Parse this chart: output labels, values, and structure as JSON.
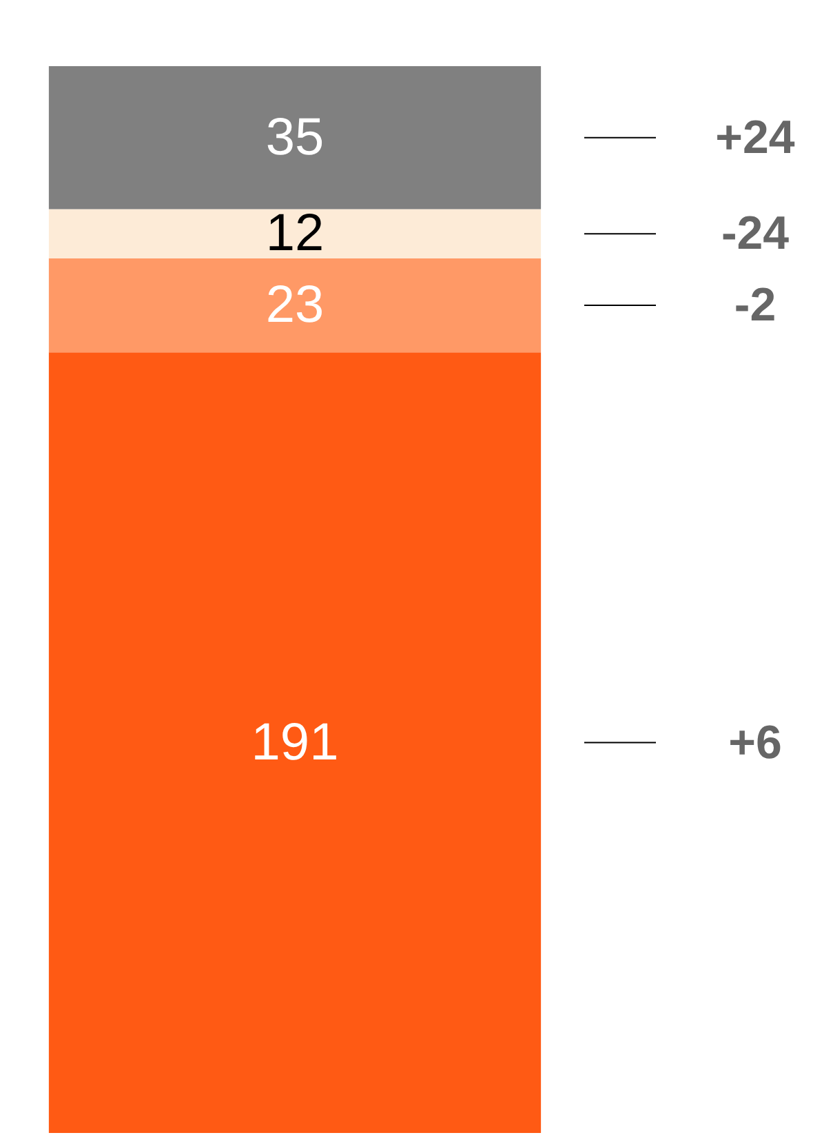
{
  "chart_data": {
    "type": "bar",
    "stacked": true,
    "categories": [
      null
    ],
    "series": [
      {
        "color": "#ff5a14",
        "values": [
          191
        ]
      },
      {
        "color": "#ff9966",
        "values": [
          23
        ]
      },
      {
        "color": "#fdebd7",
        "values": [
          12
        ]
      },
      {
        "color": "#808080",
        "values": [
          35
        ]
      }
    ],
    "data_labels": true,
    "annotations": [
      "+24",
      "-24",
      "-2",
      "+6"
    ]
  }
}
